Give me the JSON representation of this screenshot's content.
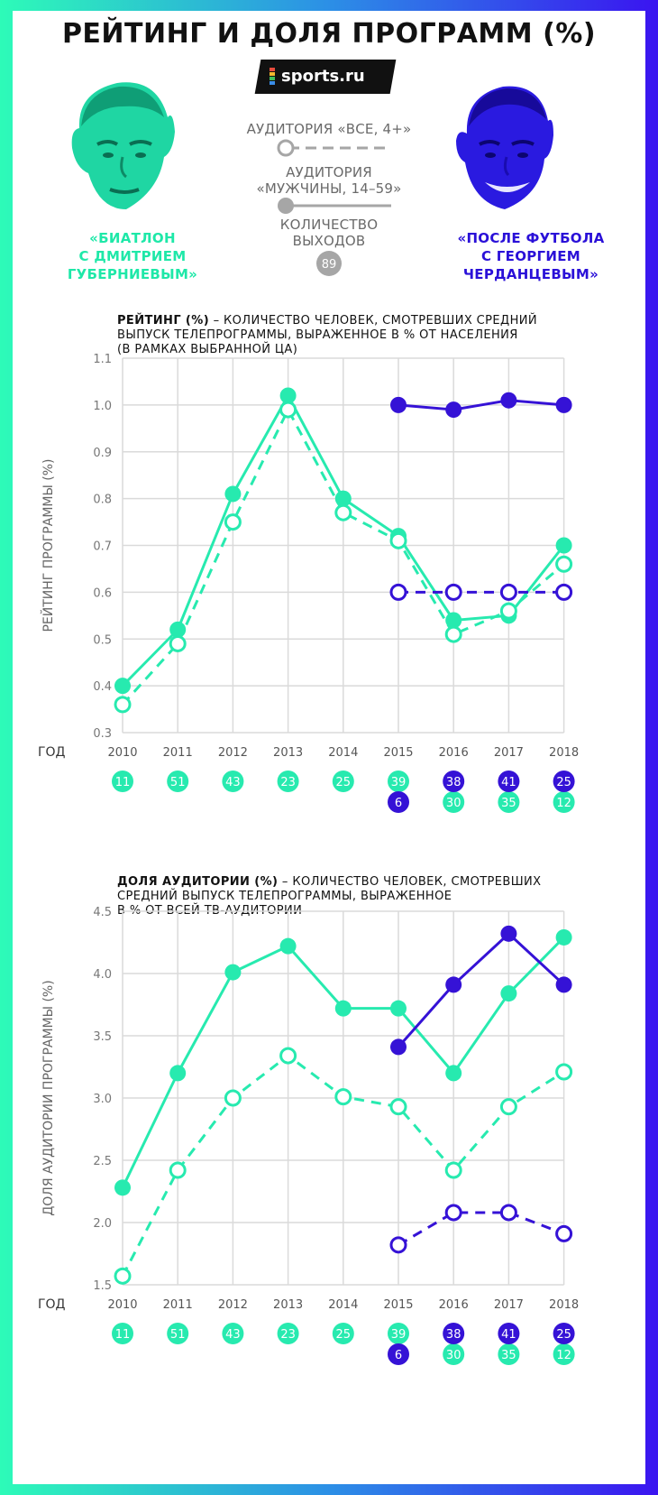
{
  "title": "РЕЙТИНГ И ДОЛЯ ПРОГРАММ (%)",
  "logo": "sports.ru",
  "colors": {
    "green": "#27eaaf",
    "blue": "#3512d6",
    "grey": "#a6a6a6",
    "grid": "#dadada"
  },
  "hosts": {
    "left": "«БИАТЛОН С ДМИТРИЕМ ГУБЕРНИЕВЫМ»",
    "left_lines": [
      "«БИАТЛОН",
      "С ДМИТРИЕМ",
      "ГУБЕРНИЕВЫМ»"
    ],
    "right": "«ПОСЛЕ ФУТБОЛА С ГЕОРГИЕМ ЧЕРДАНЦЕВЫМ»",
    "right_lines": [
      "«ПОСЛЕ ФУТБОЛА",
      "С ГЕОРГИЕМ",
      "ЧЕРДАНЦЕВЫМ»"
    ]
  },
  "legend": {
    "all": "АУДИТОРИЯ «ВСЕ, 4+»",
    "men_line1": "АУДИТОРИЯ",
    "men_line2": "«МУЖЧИНЫ, 14–59»",
    "count_line1": "КОЛИЧЕСТВО",
    "count_line2": "ВЫХОДОВ",
    "count_example": "89"
  },
  "chart_data": [
    {
      "type": "line",
      "title": "РЕЙТИНГ (%)",
      "description": " – КОЛИЧЕСТВО ЧЕЛОВЕК, СМОТРЕВШИХ СРЕДНИЙ ВЫПУСК ТЕЛЕПРОГРАММЫ, ВЫРАЖЕННОЕ В % ОТ НАСЕЛЕНИЯ (В РАМКАХ ВЫБРАННОЙ ЦА)",
      "desc_lines": [
        "– КОЛИЧЕСТВО ЧЕЛОВЕК, СМОТРЕВШИХ СРЕДНИЙ",
        "ВЫПУСК ТЕЛЕПРОГРАММЫ, ВЫРАЖЕННОЕ В % ОТ НАСЕЛЕНИЯ",
        "(В РАМКАХ ВЫБРАННОЙ ЦА)"
      ],
      "xlabel": "ГОД",
      "ylabel": "РЕЙТИНГ ПРОГРАММЫ (%)",
      "ylim": [
        0.3,
        1.1
      ],
      "yticks": [
        "0.3",
        "0.4",
        "0.5",
        "0.6",
        "0.7",
        "0.8",
        "0.9",
        "1.0",
        "1.1"
      ],
      "x": [
        "2010",
        "2011",
        "2012",
        "2013",
        "2014",
        "2015",
        "2016",
        "2017",
        "2018"
      ],
      "series": [
        {
          "name": "Губерниев — мужчины 14–59",
          "color": "green",
          "dashed": false,
          "filled": true,
          "values": [
            0.4,
            0.52,
            0.81,
            1.02,
            0.8,
            0.72,
            0.54,
            0.55,
            0.7
          ]
        },
        {
          "name": "Губерниев — все 4+",
          "color": "green",
          "dashed": true,
          "filled": false,
          "values": [
            0.36,
            0.49,
            0.75,
            0.99,
            0.77,
            0.71,
            0.51,
            0.56,
            0.66
          ]
        },
        {
          "name": "Черданцев — мужчины 14–59",
          "color": "blue",
          "dashed": false,
          "filled": true,
          "values": [
            null,
            null,
            null,
            null,
            null,
            1.0,
            0.99,
            1.01,
            1.0
          ]
        },
        {
          "name": "Черданцев — все 4+",
          "color": "blue",
          "dashed": true,
          "filled": false,
          "values": [
            null,
            null,
            null,
            null,
            null,
            0.6,
            0.6,
            0.6,
            0.6
          ]
        }
      ],
      "episodes": {
        "green": [
          "11",
          "51",
          "43",
          "23",
          "25",
          "39",
          "30",
          "35",
          "12"
        ],
        "blue": [
          null,
          null,
          null,
          null,
          null,
          "6",
          "38",
          "41",
          "25"
        ]
      }
    },
    {
      "type": "line",
      "title": "ДОЛЯ АУДИТОРИИ (%)",
      "description": " – КОЛИЧЕСТВО ЧЕЛОВЕК, СМОТРЕВШИХ СРЕДНИЙ ВЫПУСК ТЕЛЕПРОГРАММЫ, ВЫРАЖЕННОЕ В % ОТ ВСЕЙ ТВ-АУДИТОРИИ",
      "desc_lines": [
        "– КОЛИЧЕСТВО ЧЕЛОВЕК, СМОТРЕВШИХ",
        "СРЕДНИЙ ВЫПУСК ТЕЛЕПРОГРАММЫ, ВЫРАЖЕННОЕ",
        "В % ОТ ВСЕЙ ТВ-АУДИТОРИИ"
      ],
      "xlabel": "ГОД",
      "ylabel": "ДОЛЯ АУДИТОРИИ ПРОГРАММЫ (%)",
      "ylim": [
        1.5,
        4.5
      ],
      "yticks": [
        "1.5",
        "2.0",
        "2.5",
        "3.0",
        "3.5",
        "4.0",
        "4.5"
      ],
      "x": [
        "2010",
        "2011",
        "2012",
        "2013",
        "2014",
        "2015",
        "2016",
        "2017",
        "2018"
      ],
      "series": [
        {
          "name": "Губерниев — мужчины 14–59",
          "color": "green",
          "dashed": false,
          "filled": true,
          "values": [
            2.28,
            3.2,
            4.01,
            4.22,
            3.72,
            3.72,
            3.2,
            3.84,
            4.29
          ]
        },
        {
          "name": "Губерниев — все 4+",
          "color": "green",
          "dashed": true,
          "filled": false,
          "values": [
            1.57,
            2.42,
            3.0,
            3.34,
            3.01,
            2.93,
            2.42,
            2.93,
            3.21
          ]
        },
        {
          "name": "Черданцев — мужчины 14–59",
          "color": "blue",
          "dashed": false,
          "filled": true,
          "values": [
            null,
            null,
            null,
            null,
            null,
            3.41,
            3.91,
            4.32,
            3.91
          ]
        },
        {
          "name": "Черданцев — все 4+",
          "color": "blue",
          "dashed": true,
          "filled": false,
          "values": [
            null,
            null,
            null,
            null,
            null,
            1.82,
            2.08,
            2.08,
            1.91
          ]
        }
      ],
      "episodes": {
        "green": [
          "11",
          "51",
          "43",
          "23",
          "25",
          "39",
          "30",
          "35",
          "12"
        ],
        "blue": [
          null,
          null,
          null,
          null,
          null,
          "6",
          "38",
          "41",
          "25"
        ]
      }
    }
  ]
}
